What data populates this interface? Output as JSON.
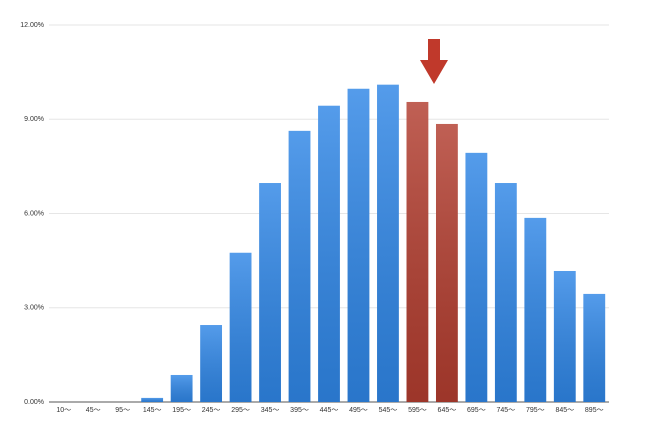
{
  "chart_data": {
    "type": "bar",
    "categories": [
      "10〜",
      "45〜",
      "95〜",
      "145〜",
      "195〜",
      "245〜",
      "295〜",
      "345〜",
      "395〜",
      "445〜",
      "495〜",
      "545〜",
      "595〜",
      "645〜",
      "695〜",
      "745〜",
      "795〜",
      "845〜",
      "895〜"
    ],
    "values": [
      0,
      0,
      0,
      0.13,
      0.86,
      2.45,
      4.75,
      6.97,
      8.63,
      9.43,
      9.97,
      10.1,
      9.55,
      8.85,
      7.93,
      6.97,
      5.86,
      4.17,
      3.44
    ],
    "colors": [
      "#2f86e6",
      "#2f86e6",
      "#2f86e6",
      "#2f86e6",
      "#2f86e6",
      "#2f86e6",
      "#2f86e6",
      "#2f86e6",
      "#2f86e6",
      "#2f86e6",
      "#2f86e6",
      "#2f86e6",
      "#b23d2f",
      "#b23d2f",
      "#2f86e6",
      "#2f86e6",
      "#2f86e6",
      "#2f86e6",
      "#2f86e6"
    ],
    "ylim": [
      0,
      12
    ],
    "yticks": [
      {
        "value": 0,
        "label": "0.00%"
      },
      {
        "value": 3,
        "label": "3.00%"
      },
      {
        "value": 6,
        "label": "6.00%"
      },
      {
        "value": 9,
        "label": "9.00%"
      },
      {
        "value": 12,
        "label": "12.00%"
      }
    ],
    "grid": true
  }
}
